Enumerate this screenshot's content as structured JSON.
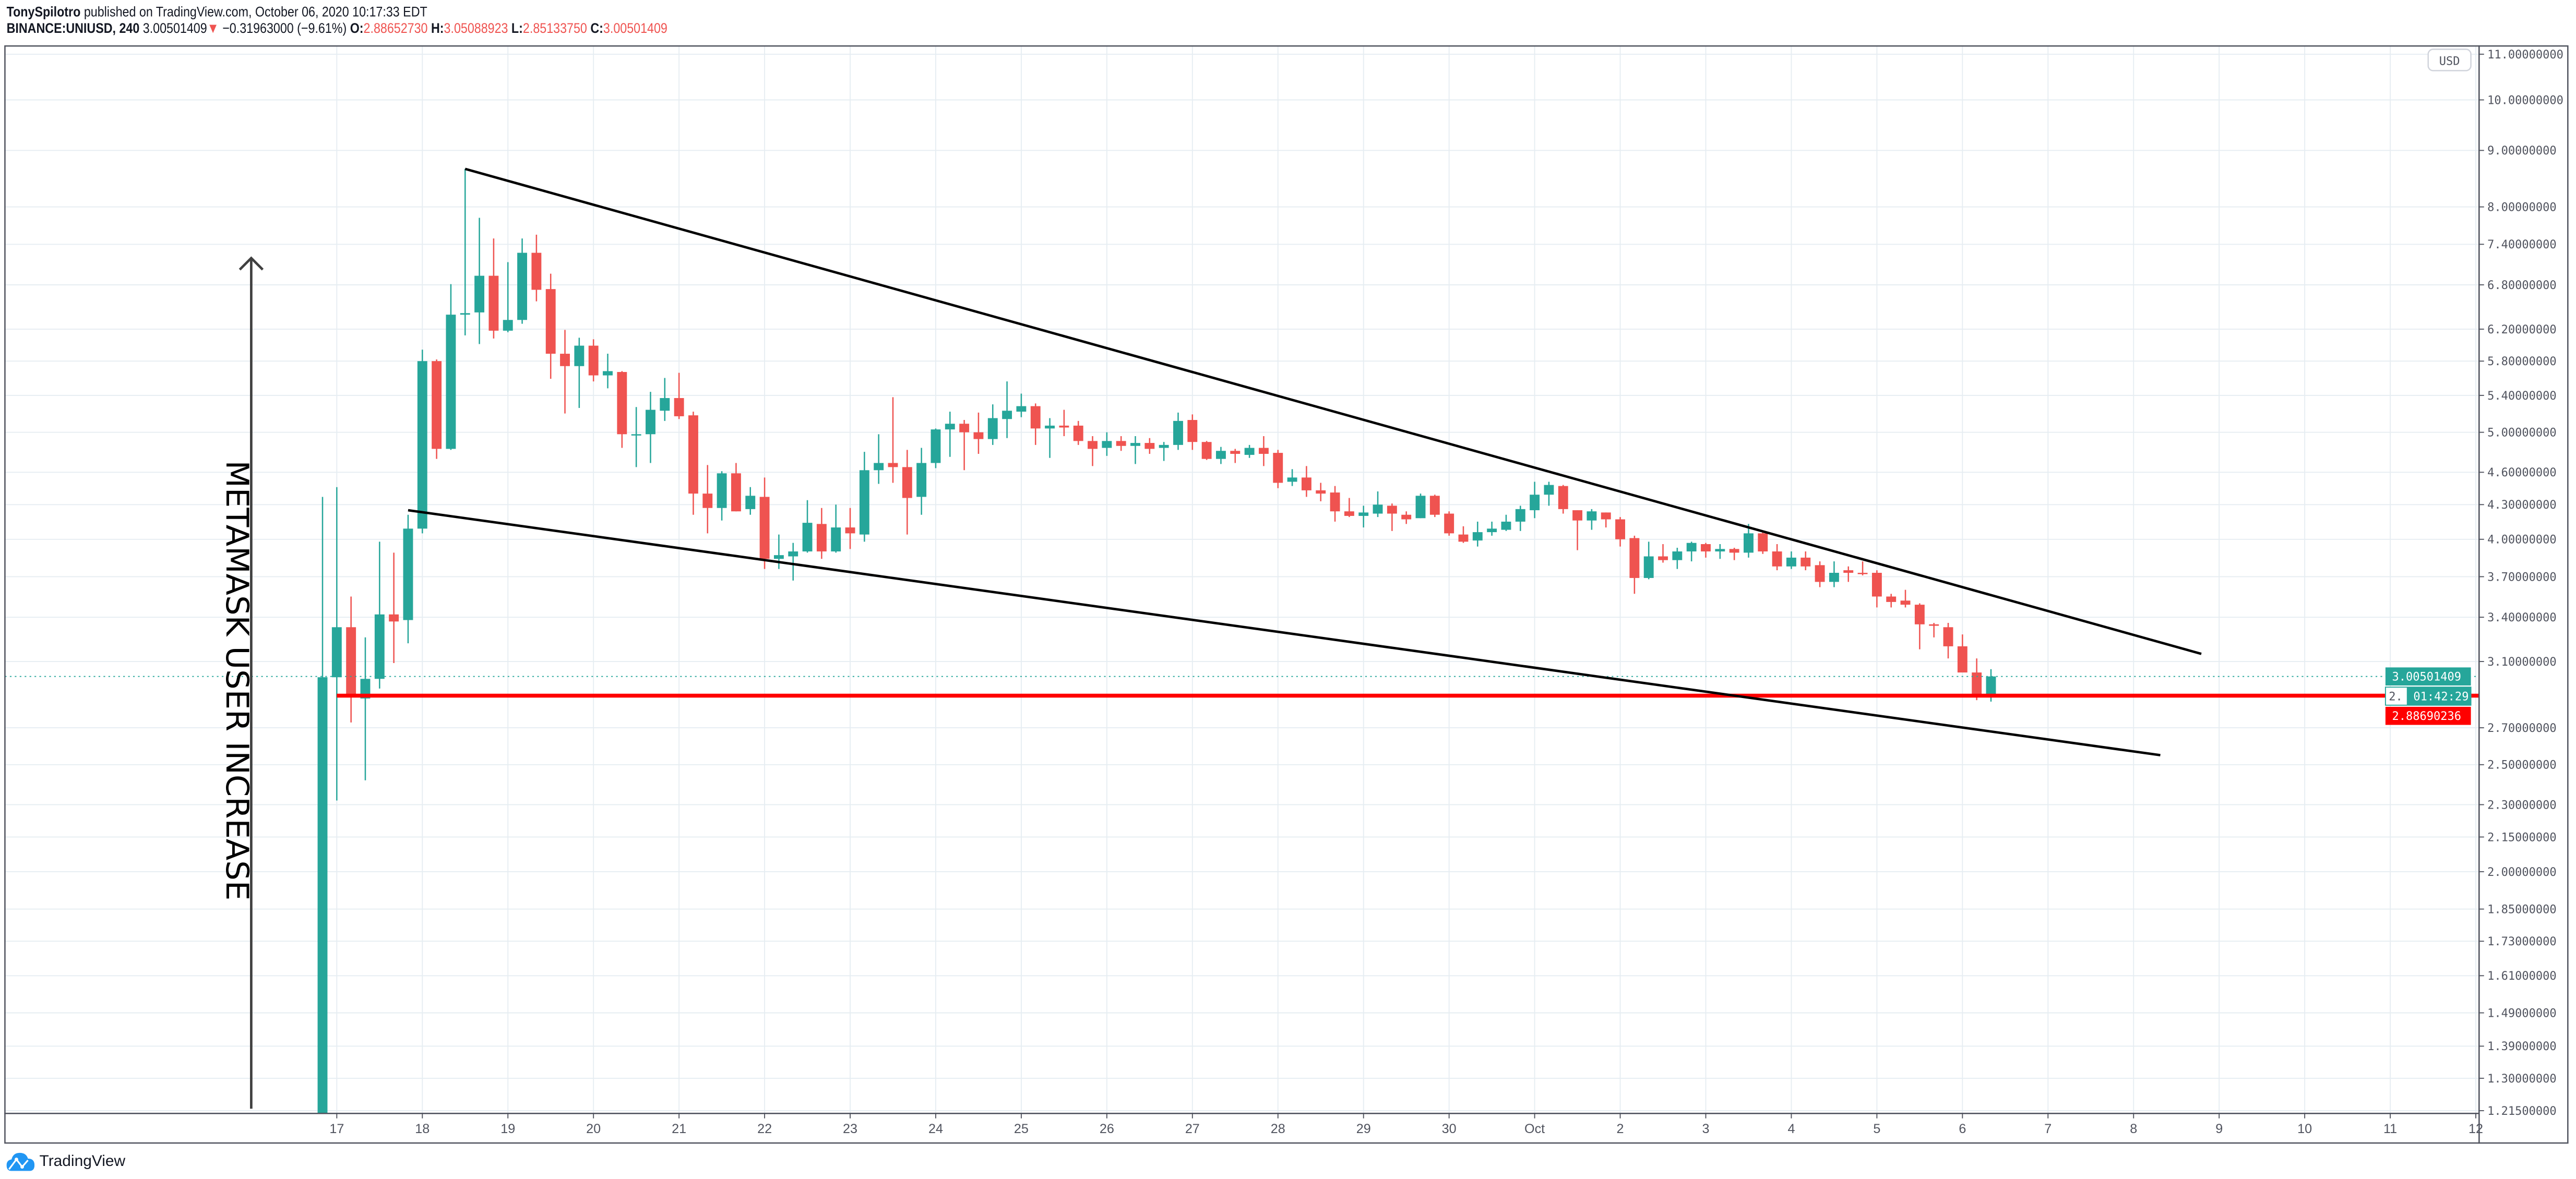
{
  "header": {
    "author": "TonySpilotro",
    "published_text": "published on TradingView.com, October 06, 2020 10:17:33 EDT",
    "symbol": "BINANCE:UNIUSD, 240",
    "last": "3.00501409",
    "arrow_icon": "triangle-down-icon",
    "arrow_glyph": "▼",
    "change": "−0.31963000 (−9.61%)",
    "o_label": "O:",
    "o": "2.88652730",
    "h_label": "H:",
    "h": "3.05088923",
    "l_label": "L:",
    "l": "2.85133750",
    "c_label": "C:",
    "c": "3.00501409"
  },
  "colors": {
    "up": "#26a69a",
    "down": "#ef5350",
    "support_line": "#ff0000",
    "trendline": "#000000",
    "grid": "#e6edf2",
    "axis_text": "#50535e"
  },
  "chart_data": {
    "type": "candlestick",
    "symbol": "BINANCE:UNIUSD",
    "interval_hours": 4,
    "start": "2020-09-16 20:00",
    "ohlc": [
      [
        1.15,
        4.37,
        1.1,
        3.0
      ],
      [
        3.0,
        4.46,
        2.32,
        3.33
      ],
      [
        3.33,
        3.55,
        2.73,
        2.88
      ],
      [
        2.87,
        3.26,
        2.42,
        2.99
      ],
      [
        2.99,
        3.98,
        2.93,
        3.42
      ],
      [
        3.42,
        3.89,
        3.09,
        3.37
      ],
      [
        3.38,
        4.21,
        3.22,
        4.09
      ],
      [
        4.09,
        5.94,
        4.05,
        5.8
      ],
      [
        5.8,
        5.82,
        4.73,
        4.83
      ],
      [
        4.83,
        6.81,
        4.82,
        6.39
      ],
      [
        6.39,
        8.66,
        6.12,
        6.41
      ],
      [
        6.42,
        7.82,
        6.01,
        6.93
      ],
      [
        6.93,
        7.49,
        6.08,
        6.18
      ],
      [
        6.18,
        7.13,
        6.16,
        6.32
      ],
      [
        6.32,
        7.49,
        6.27,
        7.27
      ],
      [
        7.27,
        7.55,
        6.57,
        6.73
      ],
      [
        6.74,
        6.96,
        5.59,
        5.89
      ],
      [
        5.89,
        6.19,
        5.2,
        5.74
      ],
      [
        5.74,
        6.09,
        5.26,
        5.99
      ],
      [
        5.99,
        6.07,
        5.56,
        5.63
      ],
      [
        5.63,
        5.89,
        5.48,
        5.68
      ],
      [
        5.67,
        5.68,
        4.84,
        4.98
      ],
      [
        4.97,
        5.27,
        4.65,
        4.98
      ],
      [
        4.98,
        5.44,
        4.69,
        5.24
      ],
      [
        5.23,
        5.6,
        5.12,
        5.37
      ],
      [
        5.37,
        5.66,
        5.14,
        5.17
      ],
      [
        5.18,
        5.22,
        4.21,
        4.4
      ],
      [
        4.4,
        4.67,
        4.05,
        4.27
      ],
      [
        4.27,
        4.61,
        4.16,
        4.59
      ],
      [
        4.59,
        4.69,
        4.24,
        4.24
      ],
      [
        4.26,
        4.46,
        4.21,
        4.38
      ],
      [
        4.37,
        4.55,
        3.76,
        3.84
      ],
      [
        3.84,
        4.04,
        3.76,
        3.87
      ],
      [
        3.86,
        3.97,
        3.67,
        3.9
      ],
      [
        3.9,
        4.34,
        3.89,
        4.14
      ],
      [
        4.13,
        4.27,
        3.84,
        3.9
      ],
      [
        3.9,
        4.3,
        3.89,
        4.1
      ],
      [
        4.1,
        4.27,
        3.92,
        4.05
      ],
      [
        4.04,
        4.8,
        3.98,
        4.62
      ],
      [
        4.62,
        4.98,
        4.49,
        4.69
      ],
      [
        4.69,
        5.38,
        4.5,
        4.65
      ],
      [
        4.65,
        4.82,
        4.04,
        4.36
      ],
      [
        4.37,
        4.84,
        4.21,
        4.69
      ],
      [
        4.69,
        5.04,
        4.64,
        5.03
      ],
      [
        5.03,
        5.22,
        4.75,
        5.09
      ],
      [
        5.09,
        5.13,
        4.62,
        5.0
      ],
      [
        5.0,
        5.21,
        4.78,
        4.93
      ],
      [
        4.93,
        5.3,
        4.87,
        5.15
      ],
      [
        5.14,
        5.56,
        4.94,
        5.23
      ],
      [
        5.22,
        5.42,
        5.16,
        5.28
      ],
      [
        5.28,
        5.31,
        4.87,
        5.04
      ],
      [
        5.04,
        5.15,
        4.74,
        5.07
      ],
      [
        5.07,
        5.24,
        4.96,
        5.05
      ],
      [
        5.07,
        5.12,
        4.87,
        4.91
      ],
      [
        4.91,
        4.96,
        4.66,
        4.83
      ],
      [
        4.84,
        5.0,
        4.76,
        4.91
      ],
      [
        4.91,
        4.96,
        4.81,
        4.86
      ],
      [
        4.86,
        4.96,
        4.68,
        4.89
      ],
      [
        4.89,
        4.94,
        4.78,
        4.83
      ],
      [
        4.84,
        4.9,
        4.71,
        4.87
      ],
      [
        4.87,
        5.21,
        4.82,
        5.12
      ],
      [
        5.13,
        5.19,
        4.82,
        4.9
      ],
      [
        4.9,
        4.91,
        4.72,
        4.73
      ],
      [
        4.73,
        4.85,
        4.68,
        4.81
      ],
      [
        4.81,
        4.83,
        4.69,
        4.78
      ],
      [
        4.77,
        4.87,
        4.74,
        4.84
      ],
      [
        4.84,
        4.96,
        4.66,
        4.78
      ],
      [
        4.79,
        4.82,
        4.45,
        4.5
      ],
      [
        4.51,
        4.63,
        4.47,
        4.55
      ],
      [
        4.55,
        4.66,
        4.37,
        4.43
      ],
      [
        4.43,
        4.5,
        4.33,
        4.4
      ],
      [
        4.41,
        4.47,
        4.15,
        4.24
      ],
      [
        4.24,
        4.36,
        4.19,
        4.2
      ],
      [
        4.2,
        4.29,
        4.1,
        4.23
      ],
      [
        4.22,
        4.42,
        4.19,
        4.3
      ],
      [
        4.29,
        4.31,
        4.07,
        4.22
      ],
      [
        4.21,
        4.24,
        4.13,
        4.17
      ],
      [
        4.18,
        4.4,
        4.18,
        4.38
      ],
      [
        4.38,
        4.39,
        4.19,
        4.21
      ],
      [
        4.22,
        4.24,
        4.03,
        4.05
      ],
      [
        4.04,
        4.11,
        3.97,
        3.98
      ],
      [
        3.99,
        4.15,
        3.94,
        4.06
      ],
      [
        4.06,
        4.15,
        4.03,
        4.09
      ],
      [
        4.08,
        4.21,
        4.07,
        4.15
      ],
      [
        4.15,
        4.29,
        4.07,
        4.26
      ],
      [
        4.25,
        4.51,
        4.18,
        4.39
      ],
      [
        4.39,
        4.51,
        4.29,
        4.48
      ],
      [
        4.47,
        4.48,
        4.22,
        4.26
      ],
      [
        4.25,
        4.25,
        3.91,
        4.16
      ],
      [
        4.16,
        4.26,
        4.08,
        4.24
      ],
      [
        4.23,
        4.23,
        4.1,
        4.17
      ],
      [
        4.17,
        4.19,
        3.94,
        4.0
      ],
      [
        4.01,
        4.03,
        3.57,
        3.69
      ],
      [
        3.69,
        3.98,
        3.68,
        3.86
      ],
      [
        3.86,
        3.96,
        3.81,
        3.83
      ],
      [
        3.83,
        3.93,
        3.76,
        3.9
      ],
      [
        3.9,
        3.98,
        3.82,
        3.97
      ],
      [
        3.96,
        3.97,
        3.85,
        3.9
      ],
      [
        3.9,
        3.96,
        3.84,
        3.92
      ],
      [
        3.92,
        3.93,
        3.83,
        3.89
      ],
      [
        3.89,
        4.13,
        3.85,
        4.05
      ],
      [
        4.05,
        4.06,
        3.88,
        3.9
      ],
      [
        3.9,
        3.96,
        3.75,
        3.78
      ],
      [
        3.78,
        3.9,
        3.76,
        3.85
      ],
      [
        3.85,
        3.9,
        3.75,
        3.78
      ],
      [
        3.79,
        3.82,
        3.62,
        3.66
      ],
      [
        3.66,
        3.82,
        3.62,
        3.73
      ],
      [
        3.75,
        3.78,
        3.66,
        3.73
      ],
      [
        3.73,
        3.82,
        3.71,
        3.72
      ],
      [
        3.73,
        3.75,
        3.47,
        3.55
      ],
      [
        3.55,
        3.57,
        3.47,
        3.51
      ],
      [
        3.52,
        3.6,
        3.47,
        3.49
      ],
      [
        3.49,
        3.5,
        3.18,
        3.35
      ],
      [
        3.35,
        3.36,
        3.26,
        3.34
      ],
      [
        3.33,
        3.36,
        3.12,
        3.2
      ],
      [
        3.2,
        3.28,
        3.03,
        3.03
      ],
      [
        3.03,
        3.12,
        2.86,
        2.89
      ],
      [
        2.8865273,
        3.05088923,
        2.8513375,
        3.00501409
      ]
    ],
    "y_axis": {
      "scale": "log",
      "range": [
        1.215,
        11.0
      ],
      "unit": "USD",
      "ticks": [
        "11.00000000",
        "10.00000000",
        "9.00000000",
        "8.00000000",
        "7.40000000",
        "6.80000000",
        "6.20000000",
        "5.80000000",
        "5.40000000",
        "5.00000000",
        "4.60000000",
        "4.30000000",
        "4.00000000",
        "3.70000000",
        "3.40000000",
        "3.10000000",
        "2.70000000",
        "2.50000000",
        "2.30000000",
        "2.15000000",
        "2.00000000",
        "1.85000000",
        "1.73000000",
        "1.61000000",
        "1.49000000",
        "1.39000000",
        "1.30000000",
        "1.21500000"
      ]
    },
    "x_axis": {
      "ticks": [
        {
          "label": "17",
          "date": "2020-09-17"
        },
        {
          "label": "18",
          "date": "2020-09-18"
        },
        {
          "label": "19",
          "date": "2020-09-19"
        },
        {
          "label": "20",
          "date": "2020-09-20"
        },
        {
          "label": "21",
          "date": "2020-09-21"
        },
        {
          "label": "22",
          "date": "2020-09-22"
        },
        {
          "label": "23",
          "date": "2020-09-23"
        },
        {
          "label": "24",
          "date": "2020-09-24"
        },
        {
          "label": "25",
          "date": "2020-09-25"
        },
        {
          "label": "26",
          "date": "2020-09-26"
        },
        {
          "label": "27",
          "date": "2020-09-27"
        },
        {
          "label": "28",
          "date": "2020-09-28"
        },
        {
          "label": "29",
          "date": "2020-09-29"
        },
        {
          "label": "30",
          "date": "2020-09-30"
        },
        {
          "label": "Oct",
          "date": "2020-10-01"
        },
        {
          "label": "2",
          "date": "2020-10-02"
        },
        {
          "label": "3",
          "date": "2020-10-03"
        },
        {
          "label": "4",
          "date": "2020-10-04"
        },
        {
          "label": "5",
          "date": "2020-10-05"
        },
        {
          "label": "6",
          "date": "2020-10-06"
        },
        {
          "label": "7",
          "date": "2020-10-07"
        },
        {
          "label": "8",
          "date": "2020-10-08"
        },
        {
          "label": "9",
          "date": "2020-10-09"
        },
        {
          "label": "10",
          "date": "2020-10-10"
        },
        {
          "label": "11",
          "date": "2020-10-11"
        },
        {
          "label": "12",
          "date": "2020-10-12"
        }
      ]
    },
    "grid": true,
    "last_price": 3.00501409,
    "last_price_label": "3.00501409",
    "countdown_prefix": "2.",
    "countdown": "01:42:29",
    "support_price": 2.88690236,
    "support_label": "2.88690236",
    "support_start": "2020-09-17 00:00",
    "trendlines": [
      {
        "name": "upper",
        "from": [
          "2020-09-18 12:00",
          8.66
        ],
        "to": [
          "2020-10-08 19:00",
          3.15
        ]
      },
      {
        "name": "lower",
        "from": [
          "2020-09-17 20:00",
          4.25
        ],
        "to": [
          "2020-10-08 07:30",
          2.55
        ]
      }
    ],
    "arrow": {
      "time": "2020-09-16 00:00",
      "from_price": 1.22,
      "to_price": 7.19
    },
    "annotation_text": {
      "text": "METAMASK  USER  INCREASE",
      "time": "2020-09-15 19:30",
      "price": 2.98
    }
  },
  "footer": {
    "logo_text": "TradingView"
  }
}
